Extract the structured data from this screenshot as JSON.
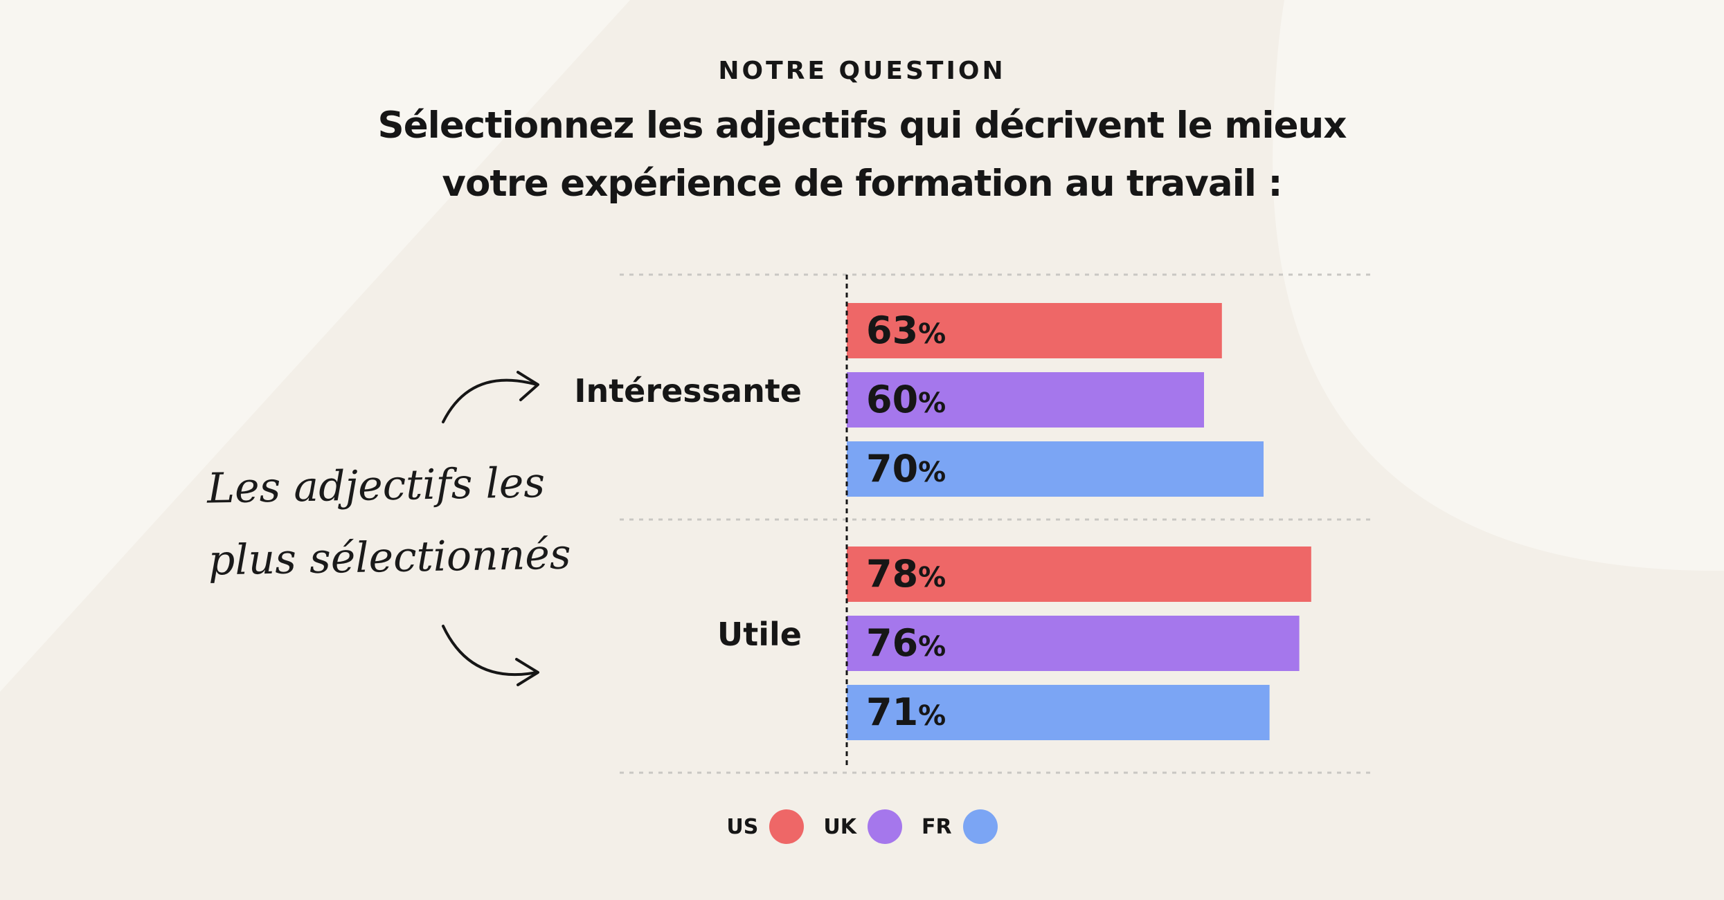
{
  "header": {
    "eyebrow": "NOTRE QUESTION",
    "question_line1": "Sélectionnez les adjectifs qui décrivent le mieux",
    "question_line2": "votre expérience de formation au travail :"
  },
  "annotation": {
    "line1": "Les adjectifs les",
    "line2": "plus sélectionnés"
  },
  "colors": {
    "background": "#f3efe8",
    "US": "#ee6767",
    "UK": "#a577ec",
    "FR": "#7ba5f4"
  },
  "chart_data": {
    "type": "bar",
    "orientation": "horizontal",
    "categories": [
      "Intéressante",
      "Utile"
    ],
    "series": [
      {
        "name": "US",
        "color": "#ee6767",
        "values": [
          63,
          78
        ]
      },
      {
        "name": "UK",
        "color": "#a577ec",
        "values": [
          60,
          76
        ]
      },
      {
        "name": "FR",
        "color": "#7ba5f4",
        "values": [
          70,
          71
        ]
      }
    ],
    "value_suffix": "%",
    "xlim": [
      0,
      100
    ],
    "legend_position": "bottom-center",
    "grid": "dotted category separators"
  }
}
